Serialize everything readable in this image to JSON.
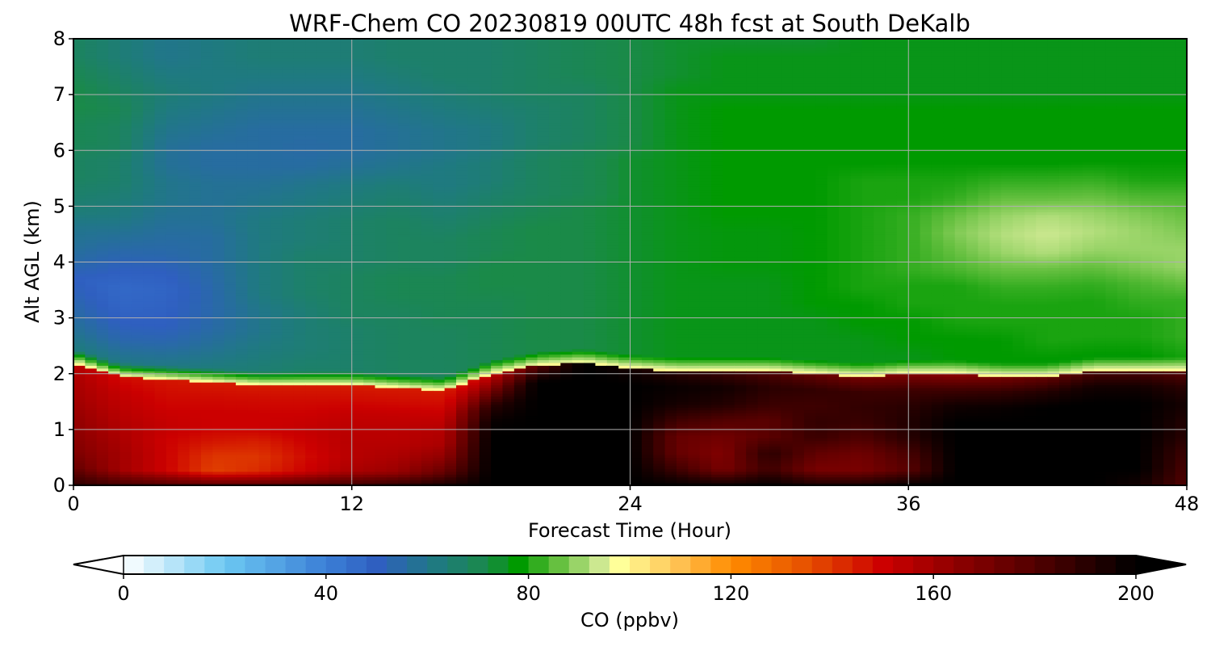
{
  "chart_data": {
    "type": "heatmap",
    "title": "WRF-Chem CO  20230819 00UTC 48h fcst at South DeKalb",
    "xlabel": "Forecast Time (Hour)",
    "ylabel": "Alt AGL (km)",
    "xlim": [
      0,
      48
    ],
    "ylim": [
      0,
      8
    ],
    "xticks": [
      0,
      12,
      24,
      36,
      48
    ],
    "yticks": [
      0,
      1,
      2,
      3,
      4,
      5,
      6,
      7,
      8
    ],
    "grid": true,
    "colorbar": {
      "label": "CO  (ppbv)",
      "range": [
        0,
        200
      ],
      "ticks": [
        0,
        40,
        80,
        120,
        160,
        200
      ],
      "extend": "both",
      "orientation": "horizontal"
    },
    "x_hours": [
      0,
      2,
      4,
      6,
      8,
      10,
      12,
      14,
      16,
      18,
      20,
      22,
      24,
      26,
      28,
      30,
      32,
      34,
      36,
      38,
      40,
      42,
      44,
      46,
      48
    ],
    "alt_km": [
      0,
      0.25,
      0.5,
      0.75,
      1,
      1.25,
      1.5,
      1.75,
      2,
      2.25,
      2.5,
      3,
      3.5,
      4,
      4.5,
      5,
      5.5,
      6,
      6.5,
      7,
      7.5,
      8
    ],
    "boundary_layer_top_km": [
      2.2,
      1.95,
      1.9,
      1.85,
      1.8,
      1.8,
      1.8,
      1.75,
      1.7,
      2.0,
      2.15,
      2.2,
      2.1,
      2.05,
      2.05,
      2.05,
      2.0,
      1.95,
      2.0,
      2.0,
      1.95,
      1.95,
      2.05,
      2.05,
      2.05
    ],
    "free_troposphere_ppbv": [
      [
        65,
        62,
        58,
        55,
        52,
        50,
        55,
        58,
        60,
        64,
        66,
        68,
        68,
        70,
        70,
        72,
        72,
        70,
        68,
        68
      ],
      [
        65,
        60,
        54,
        50,
        48,
        47,
        50,
        54,
        58,
        62,
        64,
        66,
        66,
        68,
        68,
        70,
        68,
        66,
        64,
        64
      ],
      [
        65,
        60,
        54,
        50,
        49,
        48,
        50,
        54,
        56,
        58,
        60,
        60,
        58,
        58,
        60,
        62,
        64,
        62,
        60,
        60
      ],
      [
        66,
        62,
        58,
        55,
        54,
        54,
        55,
        56,
        56,
        58,
        58,
        58,
        56,
        56,
        58,
        60,
        62,
        62,
        62,
        62
      ],
      [
        66,
        64,
        62,
        60,
        60,
        62,
        62,
        62,
        62,
        62,
        60,
        58,
        56,
        56,
        56,
        58,
        60,
        62,
        64,
        64
      ],
      [
        68,
        66,
        64,
        64,
        64,
        66,
        66,
        66,
        64,
        64,
        62,
        60,
        56,
        55,
        56,
        58,
        60,
        62,
        64,
        64
      ],
      [
        68,
        66,
        66,
        66,
        68,
        68,
        68,
        66,
        66,
        66,
        64,
        62,
        58,
        56,
        56,
        58,
        60,
        62,
        64,
        64
      ],
      [
        68,
        68,
        68,
        68,
        68,
        70,
        70,
        68,
        68,
        68,
        66,
        64,
        60,
        58,
        58,
        60,
        62,
        64,
        66,
        66
      ],
      [
        70,
        68,
        68,
        68,
        70,
        70,
        70,
        68,
        68,
        66,
        64,
        62,
        62,
        60,
        60,
        62,
        64,
        66,
        66,
        66
      ],
      [
        70,
        70,
        70,
        70,
        70,
        72,
        72,
        70,
        70,
        68,
        66,
        64,
        64,
        62,
        62,
        64,
        66,
        66,
        66,
        66
      ],
      [
        72,
        72,
        72,
        72,
        72,
        72,
        72,
        72,
        72,
        70,
        68,
        68,
        68,
        66,
        66,
        66,
        68,
        68,
        68,
        68
      ],
      [
        72,
        72,
        72,
        72,
        72,
        72,
        72,
        72,
        72,
        72,
        70,
        70,
        70,
        68,
        68,
        68,
        68,
        70,
        70,
        70
      ],
      [
        74,
        74,
        74,
        74,
        74,
        74,
        74,
        74,
        74,
        74,
        74,
        74,
        74,
        72,
        72,
        72,
        72,
        72,
        72,
        72
      ],
      [
        74,
        76,
        76,
        76,
        76,
        76,
        76,
        76,
        76,
        76,
        76,
        76,
        76,
        76,
        76,
        76,
        76,
        74,
        74,
        74
      ],
      [
        74,
        76,
        76,
        76,
        76,
        76,
        77,
        77,
        77,
        78,
        78,
        78,
        78,
        78,
        78,
        78,
        76,
        76,
        76,
        74
      ],
      [
        74,
        76,
        76,
        76,
        76,
        76,
        77,
        77,
        77,
        78,
        78,
        78,
        78,
        78,
        78,
        78,
        76,
        76,
        76,
        74
      ],
      [
        74,
        76,
        76,
        76,
        78,
        78,
        78,
        78,
        78,
        78,
        78,
        78,
        78,
        78,
        78,
        78,
        76,
        76,
        76,
        74
      ],
      [
        76,
        76,
        76,
        78,
        78,
        80,
        80,
        80,
        80,
        80,
        80,
        80,
        78,
        78,
        78,
        78,
        76,
        76,
        76,
        76
      ],
      [
        76,
        76,
        78,
        78,
        80,
        80,
        82,
        82,
        82,
        82,
        80,
        80,
        78,
        78,
        78,
        78,
        76,
        76,
        76,
        76
      ],
      [
        76,
        78,
        78,
        80,
        80,
        80,
        84,
        86,
        88,
        86,
        82,
        80,
        78,
        78,
        78,
        78,
        76,
        76,
        76,
        76
      ],
      [
        76,
        78,
        78,
        80,
        80,
        82,
        86,
        90,
        92,
        90,
        86,
        82,
        78,
        78,
        78,
        78,
        76,
        76,
        76,
        76
      ],
      [
        76,
        78,
        80,
        80,
        80,
        82,
        86,
        92,
        94,
        92,
        86,
        82,
        78,
        78,
        78,
        78,
        76,
        76,
        76,
        76
      ],
      [
        76,
        78,
        80,
        80,
        80,
        82,
        86,
        90,
        92,
        90,
        86,
        82,
        78,
        78,
        78,
        78,
        76,
        76,
        76,
        76
      ],
      [
        76,
        78,
        80,
        80,
        82,
        84,
        88,
        90,
        90,
        88,
        84,
        80,
        78,
        78,
        78,
        78,
        76,
        76,
        76,
        76
      ],
      [
        78,
        80,
        82,
        82,
        82,
        86,
        90,
        90,
        88,
        86,
        84,
        80,
        78,
        78,
        78,
        78,
        76,
        76,
        76,
        76
      ]
    ],
    "boundary_layer_ppbv": [
      [
        190,
        175,
        168,
        165,
        163,
        160,
        158,
        155
      ],
      [
        185,
        160,
        160,
        158,
        156,
        154,
        152,
        148
      ],
      [
        182,
        150,
        150,
        150,
        152,
        150,
        148,
        146
      ],
      [
        180,
        138,
        140,
        146,
        150,
        150,
        148,
        145
      ],
      [
        180,
        142,
        140,
        144,
        150,
        150,
        148,
        145
      ],
      [
        182,
        150,
        148,
        150,
        152,
        150,
        148,
        145
      ],
      [
        186,
        158,
        155,
        155,
        154,
        152,
        148,
        145
      ],
      [
        190,
        162,
        158,
        155,
        154,
        152,
        148,
        145
      ],
      [
        195,
        175,
        165,
        158,
        156,
        152,
        148,
        145
      ],
      [
        200,
        200,
        200,
        200,
        198,
        190,
        170,
        150
      ],
      [
        200,
        200,
        200,
        200,
        200,
        200,
        200,
        180
      ],
      [
        200,
        200,
        200,
        200,
        200,
        200,
        200,
        200
      ],
      [
        200,
        200,
        200,
        200,
        200,
        200,
        200,
        195
      ],
      [
        200,
        185,
        175,
        175,
        185,
        195,
        198,
        190
      ],
      [
        198,
        170,
        168,
        172,
        180,
        192,
        196,
        185
      ],
      [
        200,
        185,
        190,
        178,
        178,
        186,
        190,
        180
      ],
      [
        195,
        170,
        176,
        186,
        188,
        185,
        188,
        175
      ],
      [
        195,
        170,
        172,
        180,
        186,
        188,
        186,
        170
      ],
      [
        200,
        178,
        182,
        190,
        192,
        190,
        185,
        168
      ],
      [
        200,
        200,
        200,
        200,
        200,
        196,
        185,
        165
      ],
      [
        200,
        200,
        200,
        200,
        200,
        198,
        188,
        170
      ],
      [
        200,
        200,
        200,
        200,
        200,
        200,
        192,
        175
      ],
      [
        200,
        200,
        200,
        200,
        200,
        200,
        196,
        182
      ],
      [
        195,
        200,
        200,
        200,
        200,
        200,
        196,
        182
      ],
      [
        180,
        182,
        185,
        190,
        192,
        195,
        190,
        178
      ]
    ],
    "colormap_stops": [
      {
        "v": 0,
        "color": "#ffffff"
      },
      {
        "v": 20,
        "color": "#6cc8f2"
      },
      {
        "v": 40,
        "color": "#3b7fd6"
      },
      {
        "v": 50,
        "color": "#2f5fc0"
      },
      {
        "v": 62,
        "color": "#1f7a80"
      },
      {
        "v": 72,
        "color": "#1a8a48"
      },
      {
        "v": 78,
        "color": "#009a00"
      },
      {
        "v": 86,
        "color": "#66c040"
      },
      {
        "v": 94,
        "color": "#cce890"
      },
      {
        "v": 98,
        "color": "#ffff99"
      },
      {
        "v": 110,
        "color": "#ffc050"
      },
      {
        "v": 120,
        "color": "#ff8c00"
      },
      {
        "v": 135,
        "color": "#e65000"
      },
      {
        "v": 150,
        "color": "#cc0000"
      },
      {
        "v": 165,
        "color": "#8c0000"
      },
      {
        "v": 182,
        "color": "#4a0000"
      },
      {
        "v": 200,
        "color": "#000000"
      }
    ],
    "grid_color": "#b0b0b0"
  }
}
